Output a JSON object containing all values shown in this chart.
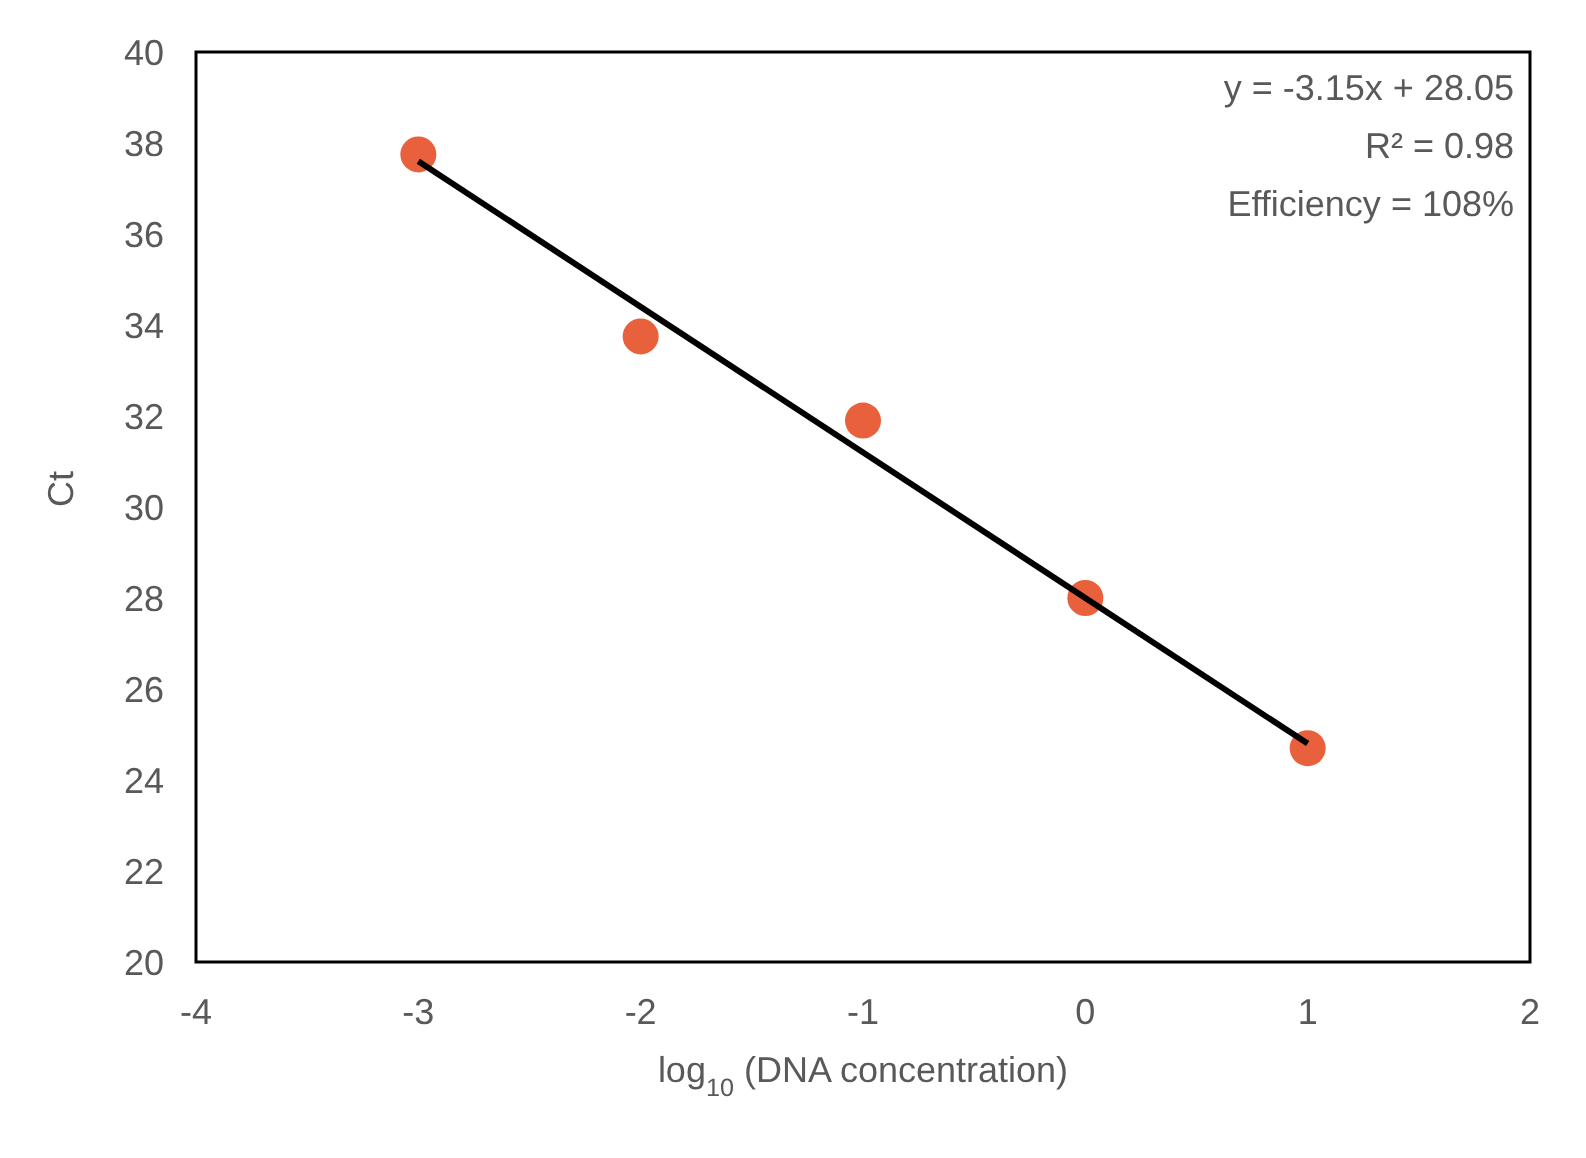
{
  "chart_data": {
    "type": "scatter",
    "xlabel": "log$_{10}$ (DNA concentration)",
    "ylabel": "Ct",
    "annotations": [
      "y = -3.15x + 28.05",
      "R² = 0.98",
      "Efficiency = 108%"
    ],
    "series": [
      {
        "type": "scatter",
        "color": "#e8603c",
        "x": [
          -3,
          -2,
          -1,
          0,
          1
        ],
        "values": [
          37.75,
          33.75,
          31.9,
          28.0,
          24.7
        ],
        "marker": "circle"
      },
      {
        "type": "line",
        "color": "#000000",
        "x": [
          -3,
          1
        ],
        "values": [
          37.6,
          24.8
        ],
        "marker": "none",
        "line_style": "solid"
      }
    ],
    "xlim": [
      -4,
      2
    ],
    "xticks": [
      -4,
      -3,
      -2,
      -1,
      0,
      1,
      2
    ],
    "ylim": [
      20,
      40
    ],
    "yticks": [
      20,
      22,
      24,
      26,
      28,
      30,
      32,
      34,
      36,
      38,
      40
    ],
    "grid": false,
    "legend": false
  }
}
